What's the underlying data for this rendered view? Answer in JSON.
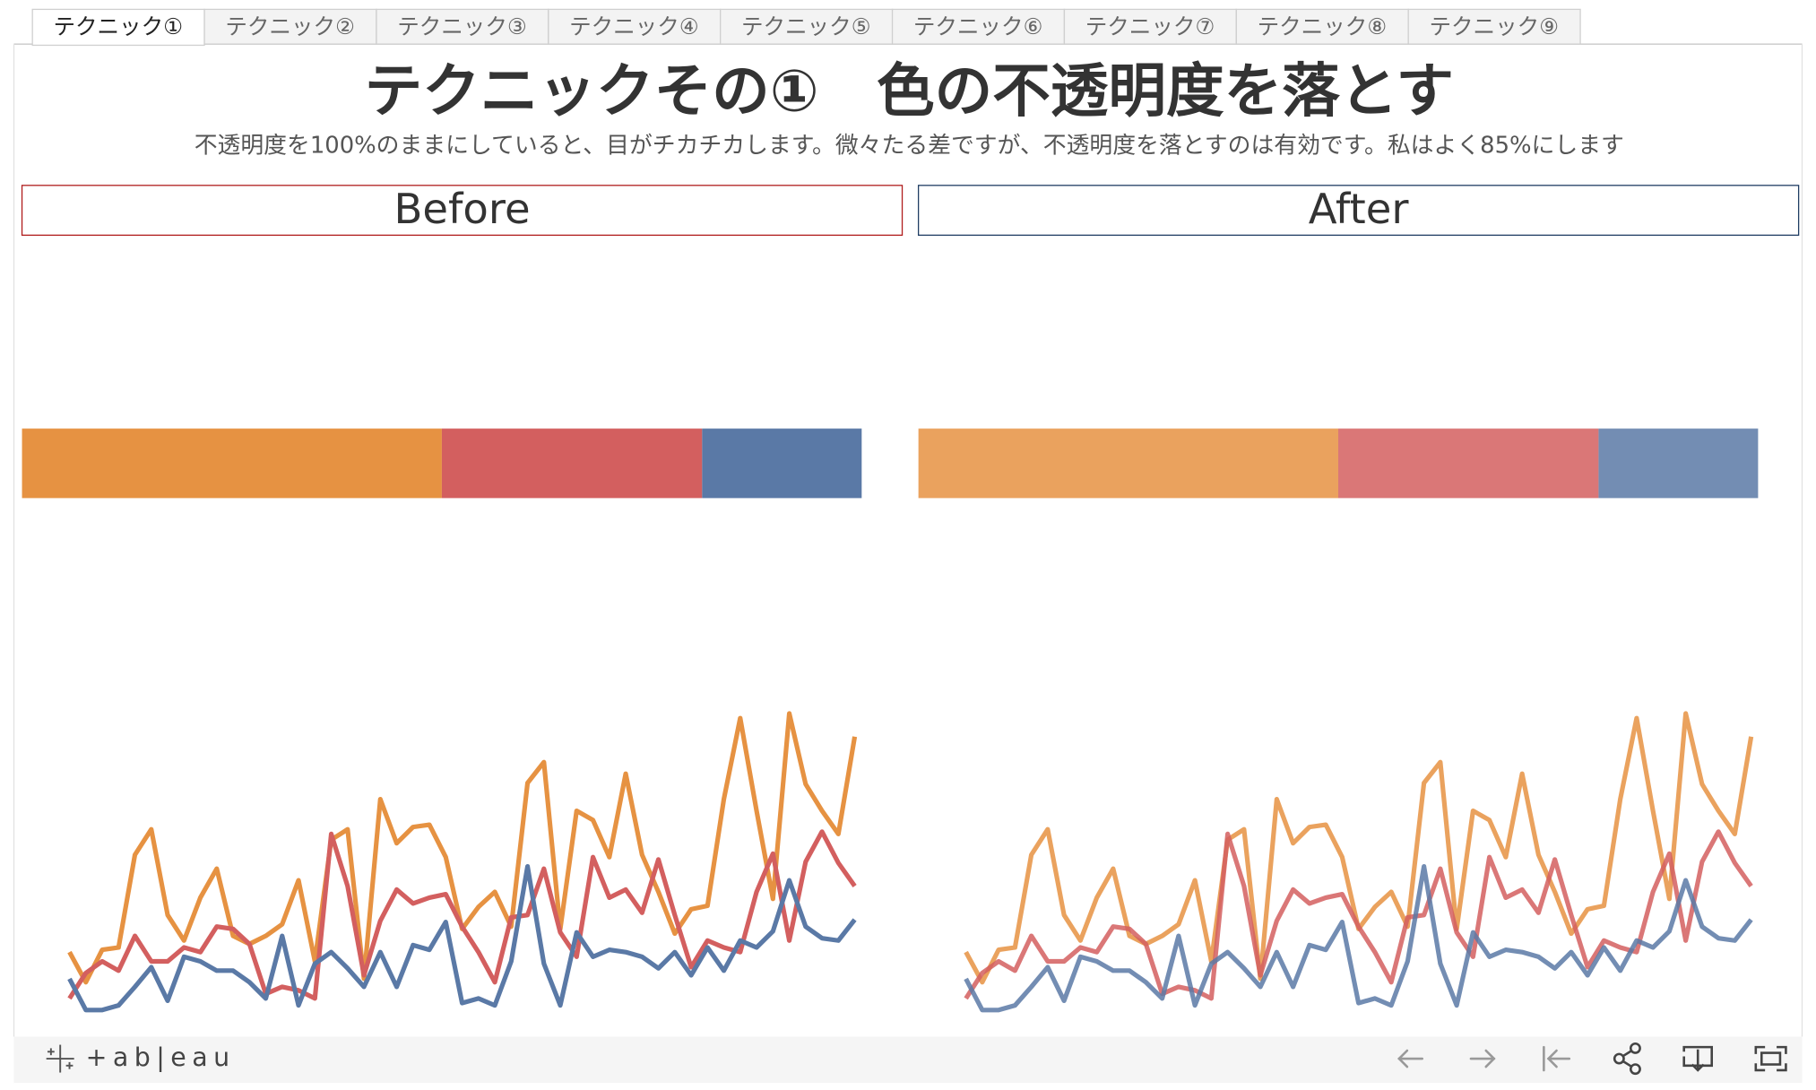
{
  "tabs": [
    "テクニック①",
    "テクニック②",
    "テクニック③",
    "テクニック④",
    "テクニック⑤",
    "テクニック⑥",
    "テクニック⑦",
    "テクニック⑧",
    "テクニック⑨"
  ],
  "header": {
    "title": "テクニックその①　色の不透明度を落とす",
    "subtitle": "不透明度を100%のままにしていると、目がチカチカします。微々たる差ですが、不透明度を落とすのは有効です。私はよく85%にします"
  },
  "chart_data": [
    {
      "type": "bar",
      "title": "Before",
      "stacked": true,
      "orientation": "horizontal",
      "opacity": 1,
      "values": [
        50,
        31,
        19
      ],
      "colors": [
        "#e69242",
        "#d35f5f",
        "#5a79a6"
      ]
    },
    {
      "type": "line",
      "opacity": 1,
      "series": [
        {
          "color": "#e69242",
          "values": [
            58,
            32,
            60,
            62,
            142,
            164,
            90,
            68,
            105,
            130,
            72,
            65,
            72,
            82,
            120,
            50,
            155,
            164,
            35,
            190,
            152,
            166,
            168,
            140,
            78,
            97,
            110,
            80,
            204,
            222,
            78,
            180,
            172,
            140,
            212,
            142,
            110,
            74,
            95,
            98,
            190,
            260,
            180,
            104,
            264,
            203,
            180,
            160,
            244
          ]
        },
        {
          "color": "#d35f5f",
          "values": [
            18,
            40,
            50,
            42,
            72,
            50,
            50,
            62,
            58,
            80,
            78,
            65,
            22,
            28,
            25,
            18,
            160,
            115,
            38,
            85,
            112,
            100,
            105,
            108,
            80,
            58,
            32,
            88,
            90,
            130,
            75,
            54,
            140,
            105,
            112,
            92,
            138,
            90,
            45,
            68,
            62,
            58,
            110,
            143,
            68,
            136,
            162,
            135,
            115
          ]
        },
        {
          "color": "#5a79a6",
          "values": [
            35,
            8,
            8,
            12,
            28,
            45,
            16,
            54,
            50,
            42,
            42,
            32,
            18,
            72,
            12,
            48,
            58,
            44,
            28,
            58,
            28,
            64,
            60,
            84,
            14,
            18,
            12,
            50,
            132,
            48,
            12,
            75,
            54,
            60,
            58,
            54,
            44,
            58,
            38,
            62,
            42,
            68,
            62,
            76,
            120,
            80,
            70,
            68,
            86
          ]
        }
      ]
    },
    {
      "type": "bar",
      "title": "After",
      "stacked": true,
      "orientation": "horizontal",
      "opacity": 0.85,
      "values": [
        50,
        31,
        19
      ],
      "colors": [
        "#e69242",
        "#d35f5f",
        "#5a79a6"
      ]
    },
    {
      "type": "line",
      "opacity": 0.85,
      "series": [
        {
          "color": "#e69242",
          "values": [
            58,
            32,
            60,
            62,
            142,
            164,
            90,
            68,
            105,
            130,
            72,
            65,
            72,
            82,
            120,
            50,
            155,
            164,
            35,
            190,
            152,
            166,
            168,
            140,
            78,
            97,
            110,
            80,
            204,
            222,
            78,
            180,
            172,
            140,
            212,
            142,
            110,
            74,
            95,
            98,
            190,
            260,
            180,
            104,
            264,
            203,
            180,
            160,
            244
          ]
        },
        {
          "color": "#d35f5f",
          "values": [
            18,
            40,
            50,
            42,
            72,
            50,
            50,
            62,
            58,
            80,
            78,
            65,
            22,
            28,
            25,
            18,
            160,
            115,
            38,
            85,
            112,
            100,
            105,
            108,
            80,
            58,
            32,
            88,
            90,
            130,
            75,
            54,
            140,
            105,
            112,
            92,
            138,
            90,
            45,
            68,
            62,
            58,
            110,
            143,
            68,
            136,
            162,
            135,
            115
          ]
        },
        {
          "color": "#5a79a6",
          "values": [
            35,
            8,
            8,
            12,
            28,
            45,
            16,
            54,
            50,
            42,
            42,
            32,
            18,
            72,
            12,
            48,
            58,
            44,
            28,
            58,
            28,
            64,
            60,
            84,
            14,
            18,
            12,
            50,
            132,
            48,
            12,
            75,
            54,
            60,
            58,
            54,
            44,
            58,
            38,
            62,
            42,
            68,
            62,
            76,
            120,
            80,
            70,
            68,
            86
          ]
        }
      ]
    }
  ],
  "footer": {
    "logo": "+ab|eau"
  }
}
